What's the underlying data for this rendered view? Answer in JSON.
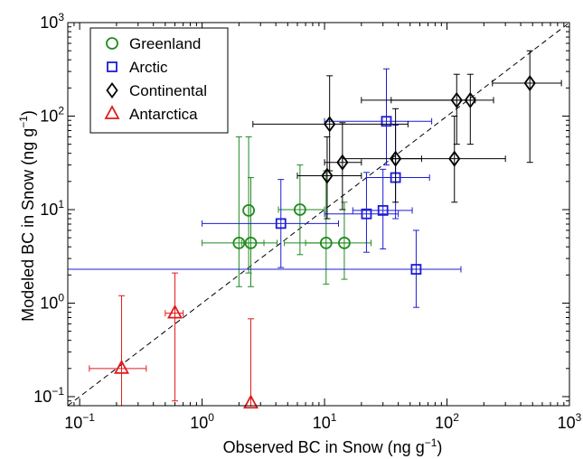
{
  "chart_data": {
    "type": "scatter",
    "title": "",
    "xlabel": "Observed BC in Snow (ng g",
    "xlabel_sup": "−1",
    "xlabel_end": ")",
    "ylabel": "Modeled BC in Snow (ng g",
    "ylabel_sup": "−1",
    "ylabel_end": ")",
    "x_scale": "log",
    "y_scale": "log",
    "xlim": [
      0.08,
      1000
    ],
    "ylim": [
      0.08,
      1000
    ],
    "x_ticks": [
      {
        "v": 0.1,
        "base": "10",
        "exp": "−1"
      },
      {
        "v": 1,
        "base": "10",
        "exp": "0"
      },
      {
        "v": 10,
        "base": "10",
        "exp": "1"
      },
      {
        "v": 100,
        "base": "10",
        "exp": "2"
      },
      {
        "v": 1000,
        "base": "10",
        "exp": "3"
      }
    ],
    "y_ticks": [
      {
        "v": 0.1,
        "base": "10",
        "exp": "−1"
      },
      {
        "v": 1,
        "base": "10",
        "exp": "0"
      },
      {
        "v": 10,
        "base": "10",
        "exp": "1"
      },
      {
        "v": 100,
        "base": "10",
        "exp": "2"
      },
      {
        "v": 1000,
        "base": "10",
        "exp": "3"
      }
    ],
    "grid": false,
    "legend_position": "top-left",
    "reference_line": "1:1",
    "series": [
      {
        "name": "Greenland",
        "color": "#1f8a1f",
        "marker": "circle",
        "points": [
          {
            "x": 2.4,
            "y": 9.8,
            "xerr": [
              2.4,
              2.4
            ],
            "yerr": [
              2.1,
              60
            ]
          },
          {
            "x": 6.3,
            "y": 10,
            "xerr": [
              4.2,
              10
            ],
            "yerr": [
              3.3,
              30
            ]
          },
          {
            "x": 2.0,
            "y": 4.4,
            "xerr": [
              1.0,
              4.1
            ],
            "yerr": [
              1.5,
              60
            ]
          },
          {
            "x": 2.5,
            "y": 4.4,
            "xerr": [
              2.1,
              3.2
            ],
            "yerr": [
              1.5,
              22
            ]
          },
          {
            "x": 10.3,
            "y": 4.4,
            "xerr": [
              4.7,
              16
            ],
            "yerr": [
              1.6,
              26
            ]
          },
          {
            "x": 14.5,
            "y": 4.4,
            "xerr": [
              7.0,
              24
            ],
            "yerr": [
              1.8,
              12
            ]
          }
        ]
      },
      {
        "name": "Arctic",
        "color": "#1c1cd6",
        "marker": "square",
        "points": [
          {
            "x": 32,
            "y": 88,
            "xerr": [
              10,
              75
            ],
            "yerr": [
              30,
              320
            ]
          },
          {
            "x": 38,
            "y": 22,
            "xerr": [
              22,
              72
            ],
            "yerr": [
              8,
              80
            ]
          },
          {
            "x": 4.4,
            "y": 7.1,
            "xerr": [
              1.0,
              13
            ],
            "yerr": [
              2.4,
              21
            ]
          },
          {
            "x": 22,
            "y": 9.0,
            "xerr": [
              10,
              40
            ],
            "yerr": [
              3.5,
              25
            ]
          },
          {
            "x": 30,
            "y": 9.8,
            "xerr": [
              17,
              52
            ],
            "yerr": [
              3.8,
              27
            ]
          },
          {
            "x": 56,
            "y": 2.3,
            "xerr": [
              0.08,
              130
            ],
            "yerr": [
              0.9,
              6
            ]
          }
        ]
      },
      {
        "name": "Continental",
        "color": "#000000",
        "marker": "diamond",
        "points": [
          {
            "x": 11,
            "y": 82,
            "xerr": [
              2.6,
              48
            ],
            "yerr": [
              26,
              270
            ]
          },
          {
            "x": 10.5,
            "y": 23,
            "xerr": [
              6.0,
              20
            ],
            "yerr": [
              8,
              60
            ]
          },
          {
            "x": 14,
            "y": 32,
            "xerr": [
              10,
              20
            ],
            "yerr": [
              10,
              85
            ]
          },
          {
            "x": 38,
            "y": 35,
            "xerr": [
              14,
              62
            ],
            "yerr": [
              12,
              120
            ]
          },
          {
            "x": 120,
            "y": 148,
            "xerr": [
              20,
              170
            ],
            "yerr": [
              50,
              280
            ]
          },
          {
            "x": 155,
            "y": 148,
            "xerr": [
              35,
              240
            ],
            "yerr": [
              50,
              280
            ]
          },
          {
            "x": 115,
            "y": 35,
            "xerr": [
              36,
              300
            ],
            "yerr": [
              12,
              100
            ]
          },
          {
            "x": 475,
            "y": 225,
            "xerr": [
              235,
              860
            ],
            "yerr": [
              32,
              500
            ]
          }
        ]
      },
      {
        "name": "Antarctica",
        "color": "#e01b1b",
        "marker": "triangle",
        "points": [
          {
            "x": 0.22,
            "y": 0.2,
            "xerr": [
              0.12,
              0.35
            ],
            "yerr": [
              0.06,
              1.2
            ]
          },
          {
            "x": 0.6,
            "y": 0.78,
            "xerr": [
              0.5,
              0.7
            ],
            "yerr": [
              0.09,
              2.1
            ]
          },
          {
            "x": 2.5,
            "y": 0.085,
            "xerr": [
              2.5,
              2.5
            ],
            "yerr": [
              0.08,
              0.68
            ]
          }
        ]
      }
    ]
  }
}
